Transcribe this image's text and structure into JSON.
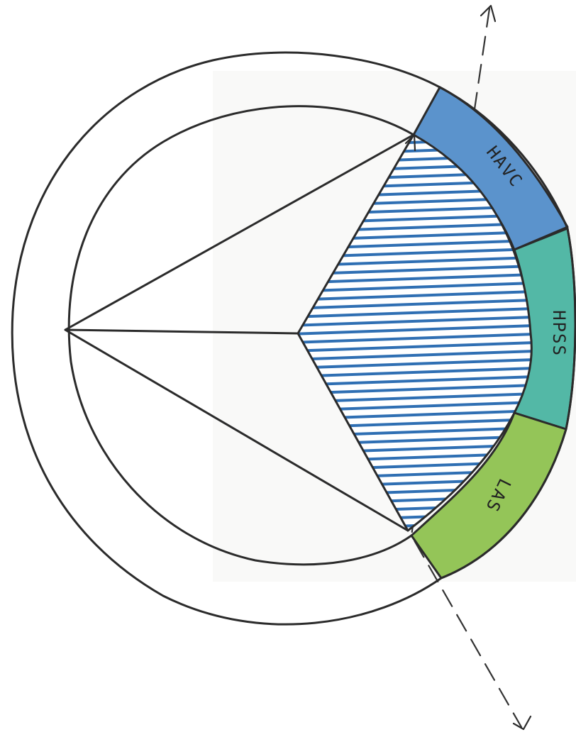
{
  "diagram": {
    "segments": [
      {
        "label": "HAVC",
        "color": "#5b93cc"
      },
      {
        "label": "HPSS",
        "color": "#53b8a6"
      },
      {
        "label": "LAS",
        "color": "#94c558"
      }
    ],
    "hatch_color": "#2f6fb3",
    "paper_color": "#f9f9f8"
  }
}
